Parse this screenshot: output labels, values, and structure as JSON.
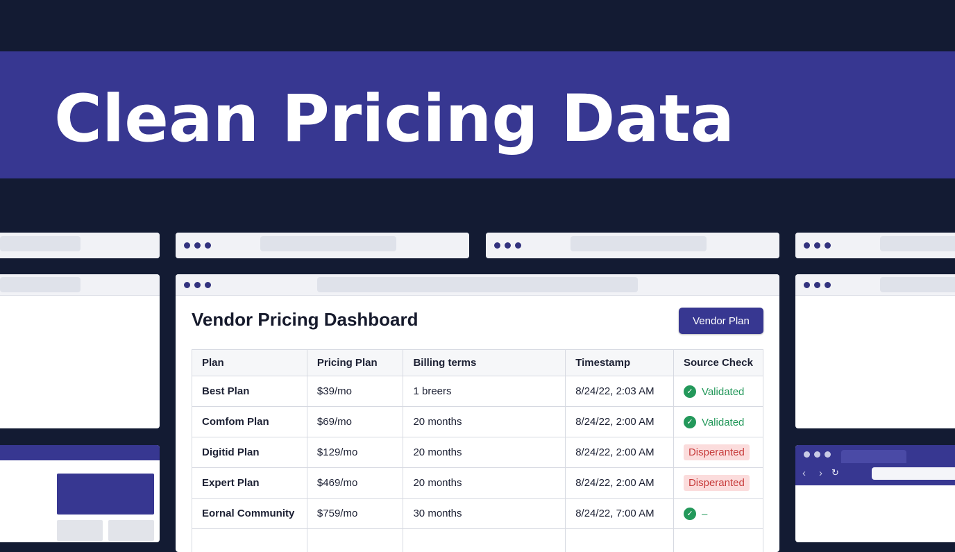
{
  "banner": {
    "title": "Clean Pricing Data"
  },
  "dashboard": {
    "title": "Vendor Pricing Dashboard",
    "button_label": "Vendor Plan",
    "columns": [
      "Plan",
      "Pricing Plan",
      "Billing terms",
      "Timestamp",
      "Source Check"
    ],
    "rows": [
      {
        "plan": "Best Plan",
        "price": "$39/mo",
        "billing": "1 breers",
        "timestamp": "8/24/22, 2:03 AM",
        "status": "Validated",
        "status_type": "ok"
      },
      {
        "plan": "Comfom Plan",
        "price": "$69/mo",
        "billing": "20 months",
        "timestamp": "8/24/22, 2:00 AM",
        "status": "Validated",
        "status_type": "ok"
      },
      {
        "plan": "Digitid Plan",
        "price": "$129/mo",
        "billing": "20 months",
        "timestamp": "8/24/22, 2:00 AM",
        "status": "Disperanted",
        "status_type": "bad"
      },
      {
        "plan": "Expert Plan",
        "price": "$469/mo",
        "billing": "20 months",
        "timestamp": "8/24/22, 2:00 AM",
        "status": "Disperanted",
        "status_type": "bad"
      },
      {
        "plan": "Eornal Community",
        "price": "$759/mo",
        "billing": "30 months",
        "timestamp": "8/24/22, 7:00 AM",
        "status": "–",
        "status_type": "ok"
      }
    ]
  },
  "colors": {
    "background": "#131b33",
    "accent": "#373791",
    "validated": "#23985a",
    "disputed_bg": "#fbdcdc",
    "disputed_text": "#c73c3c"
  },
  "icons": {
    "validated": "check-circle-icon",
    "back": "chevron-left-icon",
    "forward": "chevron-right-icon",
    "reload": "reload-icon"
  }
}
